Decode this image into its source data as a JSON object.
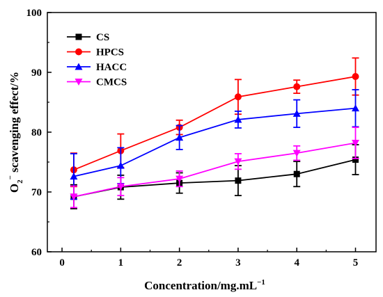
{
  "chart_data": {
    "type": "line",
    "x": [
      0.2,
      1,
      2,
      3,
      4,
      5
    ],
    "xlabel": "Concentration/mg.mL",
    "xlabel_sup": "−1",
    "ylabel_main": "O",
    "ylabel_sub": "2",
    "ylabel_sup": "−",
    "ylabel_rest": " scavenging effect/%",
    "xlim": [
      -0.25,
      5.35
    ],
    "ylim": [
      60,
      100
    ],
    "xticks": [
      0,
      1,
      2,
      3,
      4,
      5
    ],
    "yticks": [
      60,
      70,
      80,
      90,
      100
    ],
    "grid": false,
    "legend_position": "top-left",
    "series": [
      {
        "name": "CS",
        "color": "#000000",
        "marker": "square",
        "values": [
          69.2,
          70.8,
          71.5,
          71.9,
          73.0,
          75.4
        ],
        "errors": [
          2.0,
          2.0,
          1.7,
          2.5,
          2.1,
          2.5
        ]
      },
      {
        "name": "HPCS",
        "color": "#ff0000",
        "marker": "circle",
        "values": [
          73.7,
          76.9,
          80.8,
          85.9,
          87.6,
          89.3
        ],
        "errors": [
          2.8,
          2.8,
          1.2,
          2.9,
          1.1,
          3.1
        ]
      },
      {
        "name": "HACC",
        "color": "#0000ff",
        "marker": "triangle-up",
        "values": [
          72.6,
          74.4,
          79.1,
          82.1,
          83.1,
          84.0
        ],
        "errors": [
          3.8,
          3.0,
          2.0,
          1.4,
          2.3,
          3.1
        ]
      },
      {
        "name": "CMCS",
        "color": "#ff00ff",
        "marker": "triangle-down",
        "values": [
          69.2,
          70.9,
          72.2,
          75.1,
          76.5,
          78.2
        ],
        "errors": [
          1.8,
          1.5,
          1.3,
          1.3,
          1.2,
          2.6
        ]
      }
    ]
  }
}
